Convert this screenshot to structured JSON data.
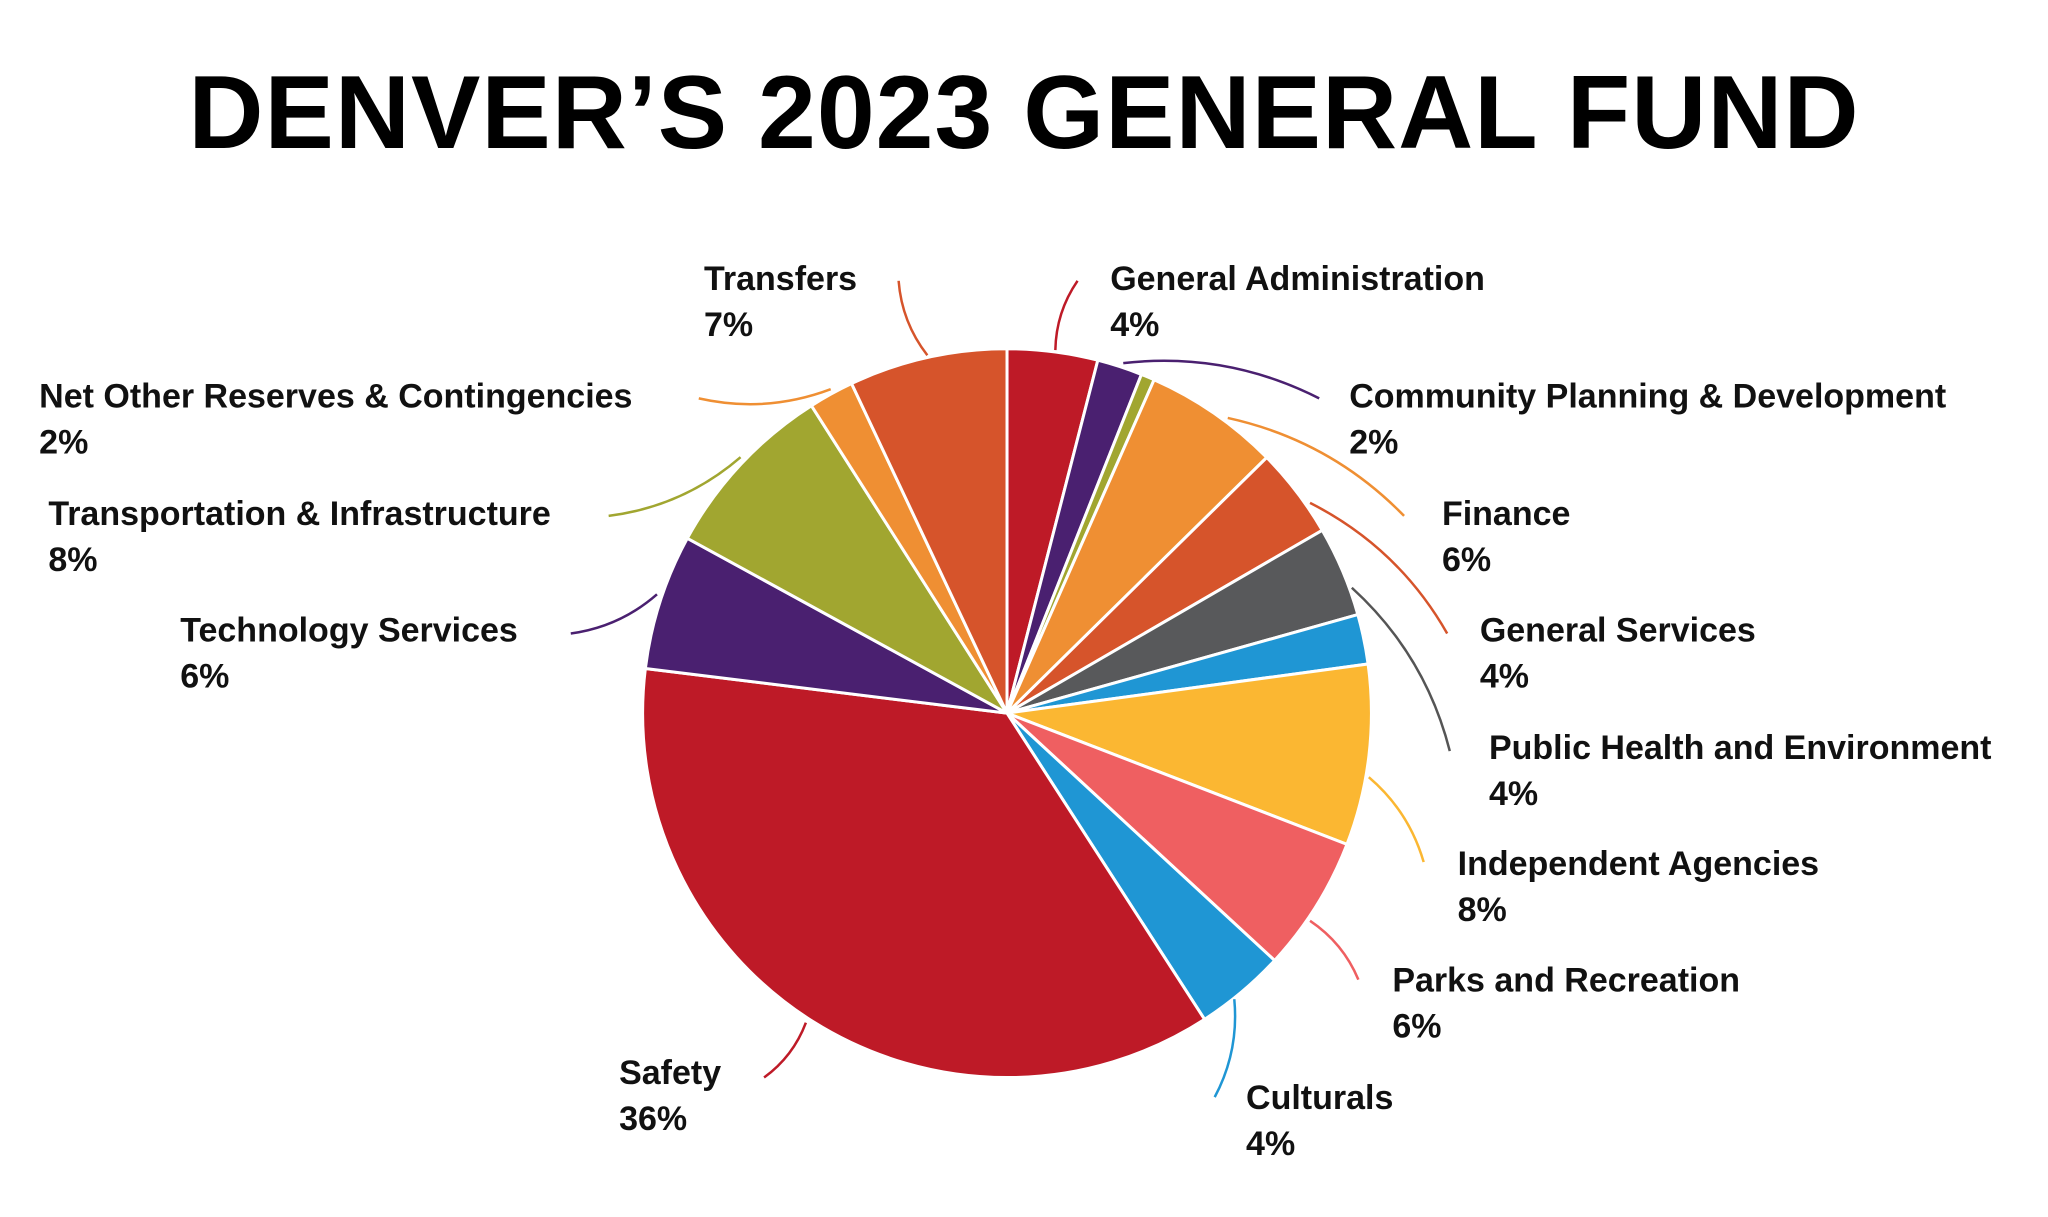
{
  "chart_data": {
    "type": "pie",
    "title": "DENVER’S 2023 GENERAL FUND",
    "categories": [
      "General Administration",
      "Community Planning & Development",
      null,
      "Finance",
      "General Services",
      "Public Health and Environment",
      null,
      "Independent Agencies",
      "Parks and Recreation",
      "Culturals",
      "Safety",
      "Technology Services",
      "Transportation & Infrastructure",
      "Net Other Reserves & Contingencies",
      "Transfers"
    ],
    "values": [
      4,
      2,
      0.6,
      6,
      4,
      4,
      2.2,
      8,
      6,
      4,
      36,
      6,
      8,
      2,
      7
    ],
    "value_labels": [
      "4%",
      "2%",
      null,
      "6%",
      "4%",
      "4%",
      null,
      "8%",
      "6%",
      "4%",
      "36%",
      "6%",
      "8%",
      "2%",
      "7%"
    ],
    "colors": [
      "#be1a27",
      "#4a2070",
      "#a1a630",
      "#ef8f33",
      "#d6542b",
      "#58595b",
      "#1f96d4",
      "#fbb732",
      "#ef5f61",
      "#1f96d4",
      "#be1a27",
      "#4a2070",
      "#a1a630",
      "#ef8f33",
      "#d6542b"
    ]
  }
}
